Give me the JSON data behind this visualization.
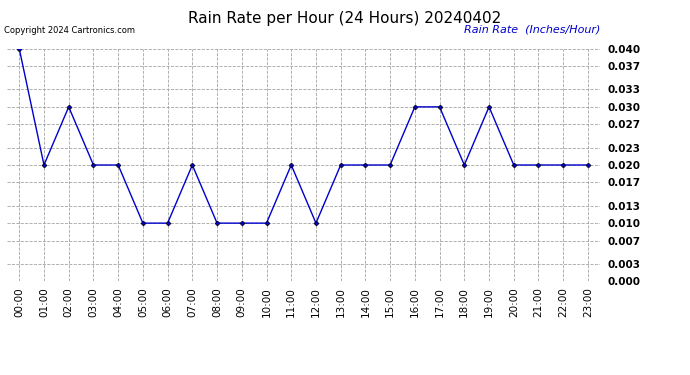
{
  "title": "Rain Rate per Hour (24 Hours) 20240402",
  "copyright_text": "Copyright 2024 Cartronics.com",
  "legend_label": "Rain Rate  (Inches/Hour)",
  "hours": [
    0,
    1,
    2,
    3,
    4,
    5,
    6,
    7,
    8,
    9,
    10,
    11,
    12,
    13,
    14,
    15,
    16,
    17,
    18,
    19,
    20,
    21,
    22,
    23
  ],
  "values": [
    0.04,
    0.02,
    0.03,
    0.02,
    0.02,
    0.01,
    0.01,
    0.02,
    0.01,
    0.01,
    0.01,
    0.02,
    0.01,
    0.02,
    0.02,
    0.02,
    0.03,
    0.03,
    0.02,
    0.03,
    0.02,
    0.02,
    0.02,
    0.02
  ],
  "xlabels": [
    "00:00",
    "01:00",
    "02:00",
    "03:00",
    "04:00",
    "05:00",
    "06:00",
    "07:00",
    "08:00",
    "09:00",
    "10:00",
    "11:00",
    "12:00",
    "13:00",
    "14:00",
    "15:00",
    "16:00",
    "17:00",
    "18:00",
    "19:00",
    "20:00",
    "21:00",
    "22:00",
    "23:00"
  ],
  "yticks": [
    0.0,
    0.003,
    0.007,
    0.01,
    0.013,
    0.017,
    0.02,
    0.023,
    0.027,
    0.03,
    0.033,
    0.037,
    0.04
  ],
  "ylim": [
    0.0,
    0.04
  ],
  "line_color": "#0000cc",
  "marker": "D",
  "marker_size": 2.5,
  "title_fontsize": 11,
  "tick_fontsize": 7.5,
  "copyright_fontsize": 6,
  "legend_fontsize": 8,
  "legend_color": "#0000cc",
  "copyright_color": "#000000",
  "background_color": "#ffffff",
  "grid_color": "#999999"
}
